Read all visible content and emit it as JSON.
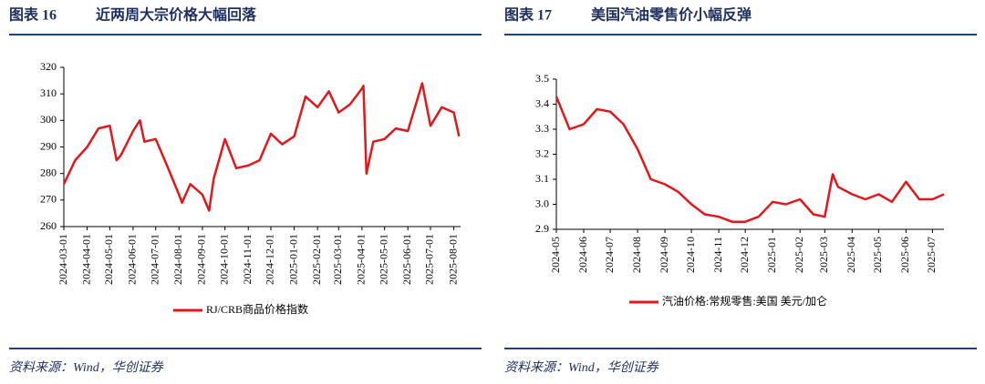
{
  "chart_data": [
    {
      "type": "line",
      "label": "图表 16",
      "title": "近两周大宗价格大幅回落",
      "source": "资料来源：Wind，华创证券",
      "x": [
        "2024-03-01",
        "2024-03-16",
        "2024-04-01",
        "2024-04-16",
        "2024-05-01",
        "2024-05-10",
        "2024-05-16",
        "2024-06-01",
        "2024-06-10",
        "2024-06-16",
        "2024-07-01",
        "2024-07-16",
        "2024-08-01",
        "2024-08-05",
        "2024-08-16",
        "2024-09-01",
        "2024-09-10",
        "2024-09-16",
        "2024-10-01",
        "2024-10-16",
        "2024-11-01",
        "2024-11-16",
        "2024-12-01",
        "2024-12-16",
        "2025-01-01",
        "2025-01-16",
        "2025-02-01",
        "2025-02-16",
        "2025-03-01",
        "2025-03-16",
        "2025-04-01",
        "2025-04-03",
        "2025-04-07",
        "2025-04-16",
        "2025-05-01",
        "2025-05-16",
        "2025-06-01",
        "2025-06-20",
        "2025-07-01",
        "2025-07-16",
        "2025-08-01",
        "2025-08-08"
      ],
      "series": [
        {
          "name": "RJ/CRB商品价格指数",
          "color": "#e3171b",
          "values": [
            276,
            285,
            290,
            297,
            298,
            285,
            287,
            296,
            300,
            292,
            293,
            283,
            272,
            269,
            276,
            272,
            266,
            278,
            293,
            282,
            283,
            285,
            295,
            291,
            294,
            309,
            305,
            311,
            303,
            306,
            312,
            313,
            280,
            292,
            293,
            297,
            296,
            314,
            298,
            305,
            303,
            294
          ]
        }
      ],
      "xlim": [
        "2024-03-01",
        "2025-08-10"
      ],
      "xticks": [
        "2024-03-01",
        "2024-04-01",
        "2024-05-01",
        "2024-06-01",
        "2024-07-01",
        "2024-08-01",
        "2024-09-01",
        "2024-10-01",
        "2024-11-01",
        "2024-12-01",
        "2025-01-01",
        "2025-02-01",
        "2025-03-01",
        "2025-04-01",
        "2025-05-01",
        "2025-06-01",
        "2025-07-01",
        "2025-08-01"
      ],
      "ylim": [
        260,
        320
      ],
      "yticks": [
        260,
        270,
        280,
        290,
        300,
        310,
        320
      ]
    },
    {
      "type": "line",
      "label": "图表 17",
      "title": "美国汽油零售价小幅反弹",
      "source": "资料来源：Wind，华创证券",
      "x": [
        "2024-05-01",
        "2024-05-16",
        "2024-06-01",
        "2024-06-16",
        "2024-07-01",
        "2024-07-16",
        "2024-08-01",
        "2024-08-16",
        "2024-09-01",
        "2024-09-16",
        "2024-10-01",
        "2024-10-16",
        "2024-11-01",
        "2024-11-16",
        "2024-12-01",
        "2024-12-16",
        "2025-01-01",
        "2025-01-16",
        "2025-02-01",
        "2025-02-16",
        "2025-03-01",
        "2025-03-10",
        "2025-03-16",
        "2025-04-01",
        "2025-04-16",
        "2025-05-01",
        "2025-05-16",
        "2025-06-01",
        "2025-06-16",
        "2025-07-01",
        "2025-07-14"
      ],
      "series": [
        {
          "name": "汽油价格:常规零售:美国 美元/加仑",
          "color": "#e3171b",
          "values": [
            3.43,
            3.3,
            3.32,
            3.38,
            3.37,
            3.32,
            3.22,
            3.1,
            3.08,
            3.05,
            3.0,
            2.96,
            2.95,
            2.93,
            2.93,
            2.95,
            3.01,
            3.0,
            3.02,
            2.96,
            2.95,
            3.12,
            3.07,
            3.04,
            3.02,
            3.04,
            3.01,
            3.09,
            3.02,
            3.02,
            3.04
          ]
        }
      ],
      "xlim": [
        "2024-05-01",
        "2025-07-14"
      ],
      "xticks": [
        "2024-05",
        "2024-06",
        "2024-07",
        "2024-08",
        "2024-09",
        "2024-10",
        "2024-11",
        "2024-12",
        "2025-01",
        "2025-02",
        "2025-03",
        "2025-04",
        "2025-05",
        "2025-06",
        "2025-07"
      ],
      "ylim": [
        2.9,
        3.5
      ],
      "yticks": [
        2.9,
        {
          "value": 3,
          "label": "3.0"
        },
        3.1,
        3.2,
        3.3,
        3.4,
        3.5
      ]
    }
  ]
}
